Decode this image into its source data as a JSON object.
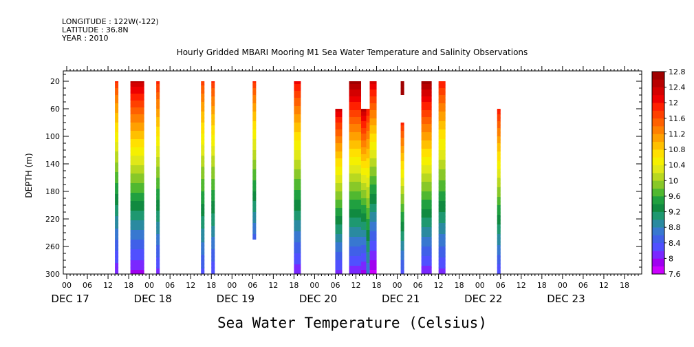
{
  "header": {
    "longitude": "LONGITUDE : 122W(-122)",
    "latitude": "LATITUDE : 36.8N",
    "year": "YEAR : 2010"
  },
  "chart_data": {
    "type": "heatmap",
    "title": "Hourly Gridded MBARI Mooring M1 Sea Water Temperature and Salinity Observations",
    "xlabel": "Sea Water Temperature (Celsius)",
    "ylabel": "DEPTH (m)",
    "x_unit": "hours since DEC 16 2010 23:00",
    "xlim": [
      0,
      168
    ],
    "ylim": [
      300,
      5
    ],
    "y_ticks": [
      20,
      60,
      100,
      140,
      180,
      220,
      260,
      300
    ],
    "x_hour_labels": [
      "00",
      "06",
      "12",
      "18",
      "00",
      "06",
      "12",
      "18",
      "00",
      "06",
      "12",
      "18",
      "00",
      "06",
      "12",
      "18",
      "00",
      "06",
      "12",
      "18",
      "00",
      "06",
      "12",
      "18",
      "00",
      "06",
      "12",
      "18"
    ],
    "day_labels": [
      "DEC 17",
      "DEC 18",
      "DEC 19",
      "DEC 20",
      "DEC 21",
      "DEC 22",
      "DEC 23"
    ],
    "colorbar": {
      "labels": [
        "12.8",
        "12.4",
        "12",
        "11.6",
        "11.2",
        "10.8",
        "10.4",
        "10",
        "9.6",
        "9.2",
        "8.8",
        "8.4",
        "8",
        "7.6"
      ],
      "min": 7.6,
      "max": 12.8,
      "levels": 26,
      "colors": [
        "#cc00ff",
        "#a000f0",
        "#7a28ff",
        "#5050ff",
        "#4060e8",
        "#3878d0",
        "#2a8aa0",
        "#1e9870",
        "#108a40",
        "#20a040",
        "#50b830",
        "#88c828",
        "#b8d820",
        "#e0e818",
        "#f5f000",
        "#ffe000",
        "#ffc000",
        "#ffa000",
        "#ff8000",
        "#ff6000",
        "#ff4000",
        "#ff2000",
        "#ee0000",
        "#d40000",
        "#b80000",
        "#a00000"
      ]
    },
    "series": [
      {
        "x0": 15.0,
        "x1": 16.0,
        "top": 20,
        "bottom": 300,
        "t_top": 11.8,
        "t_bottom": 8.0
      },
      {
        "x0": 19.5,
        "x1": 23.5,
        "top": 20,
        "bottom": 300,
        "t_top": 12.4,
        "t_bottom": 7.9
      },
      {
        "x0": 27.0,
        "x1": 28.0,
        "top": 20,
        "bottom": 300,
        "t_top": 11.9,
        "t_bottom": 8.1
      },
      {
        "x0": 40.0,
        "x1": 41.0,
        "top": 20,
        "bottom": 300,
        "t_top": 11.7,
        "t_bottom": 8.3
      },
      {
        "x0": 43.0,
        "x1": 44.0,
        "top": 20,
        "bottom": 300,
        "t_top": 11.8,
        "t_bottom": 8.2
      },
      {
        "x0": 55.0,
        "x1": 56.0,
        "top": 20,
        "bottom": 250,
        "t_top": 11.8,
        "t_bottom": 8.5
      },
      {
        "x0": 67.0,
        "x1": 69.0,
        "top": 20,
        "bottom": 300,
        "t_top": 12.1,
        "t_bottom": 8.0
      },
      {
        "x0": 79.0,
        "x1": 81.0,
        "top": 60,
        "bottom": 300,
        "t_top": 12.3,
        "t_bottom": 8.1
      },
      {
        "x0": 83.0,
        "x1": 86.5,
        "top": 20,
        "bottom": 300,
        "t_top": 12.7,
        "t_bottom": 8.0
      },
      {
        "x0": 86.5,
        "x1": 88.0,
        "top": 60,
        "bottom": 300,
        "t_top": 12.5,
        "t_bottom": 7.9
      },
      {
        "x0": 88.0,
        "x1": 89.0,
        "top": 60,
        "bottom": 300,
        "t_top": 12.0,
        "t_bottom": 8.6
      },
      {
        "x0": 89.0,
        "x1": 91.0,
        "top": 20,
        "bottom": 300,
        "t_top": 12.3,
        "t_bottom": 7.7
      },
      {
        "x0": 98.0,
        "x1": 99.0,
        "top": 20,
        "bottom": 40,
        "t_top": 12.7,
        "t_bottom": 12.6
      },
      {
        "x0": 98.0,
        "x1": 99.0,
        "top": 80,
        "bottom": 300,
        "t_top": 11.9,
        "t_bottom": 8.3
      },
      {
        "x0": 104.0,
        "x1": 107.0,
        "top": 20,
        "bottom": 300,
        "t_top": 12.7,
        "t_bottom": 8.0
      },
      {
        "x0": 109.0,
        "x1": 111.0,
        "top": 20,
        "bottom": 300,
        "t_top": 12.0,
        "t_bottom": 8.1
      },
      {
        "x0": 126.0,
        "x1": 127.0,
        "top": 60,
        "bottom": 300,
        "t_top": 12.0,
        "t_bottom": 8.2
      }
    ]
  }
}
